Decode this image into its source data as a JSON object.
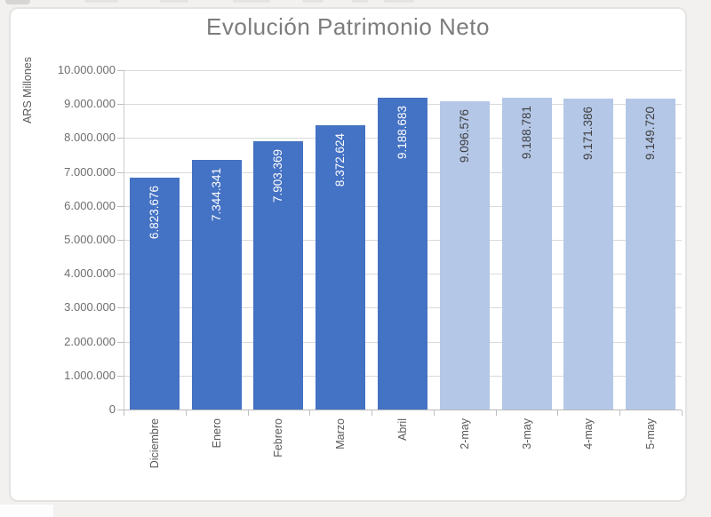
{
  "chart_data": {
    "type": "bar",
    "title": "Evolución Patrimonio Neto",
    "ylabel": "ARS Millones",
    "xlabel": "",
    "categories": [
      "Diciembre",
      "Enero",
      "Febrero",
      "Marzo",
      "Abril",
      "2-may",
      "3-may",
      "4-may",
      "5-may"
    ],
    "values": [
      6823676,
      7344341,
      7903369,
      8372624,
      9188683,
      9096576,
      9188781,
      9171386,
      9149720
    ],
    "value_labels": [
      "6.823.676",
      "7.344.341",
      "7.903.369",
      "8.372.624",
      "9.188.683",
      "9.096.576",
      "9.188.781",
      "9.171.386",
      "9.149.720"
    ],
    "bar_styles": [
      "dark",
      "dark",
      "dark",
      "dark",
      "dark",
      "light",
      "light",
      "light",
      "light"
    ],
    "colors": {
      "dark_bar": "#4472C4",
      "light_bar": "#B4C7E7"
    },
    "data_label_colors": {
      "dark": "#FFFFFF",
      "light": "#3F3F3F"
    },
    "ylim": [
      0,
      10000000
    ],
    "ytick_step": 1000000,
    "y_tick_labels": [
      "0",
      "1.000.000",
      "2.000.000",
      "3.000.000",
      "4.000.000",
      "5.000.000",
      "6.000.000",
      "7.000.000",
      "8.000.000",
      "9.000.000",
      "10.000.000"
    ],
    "grid": true,
    "legend": "none"
  }
}
